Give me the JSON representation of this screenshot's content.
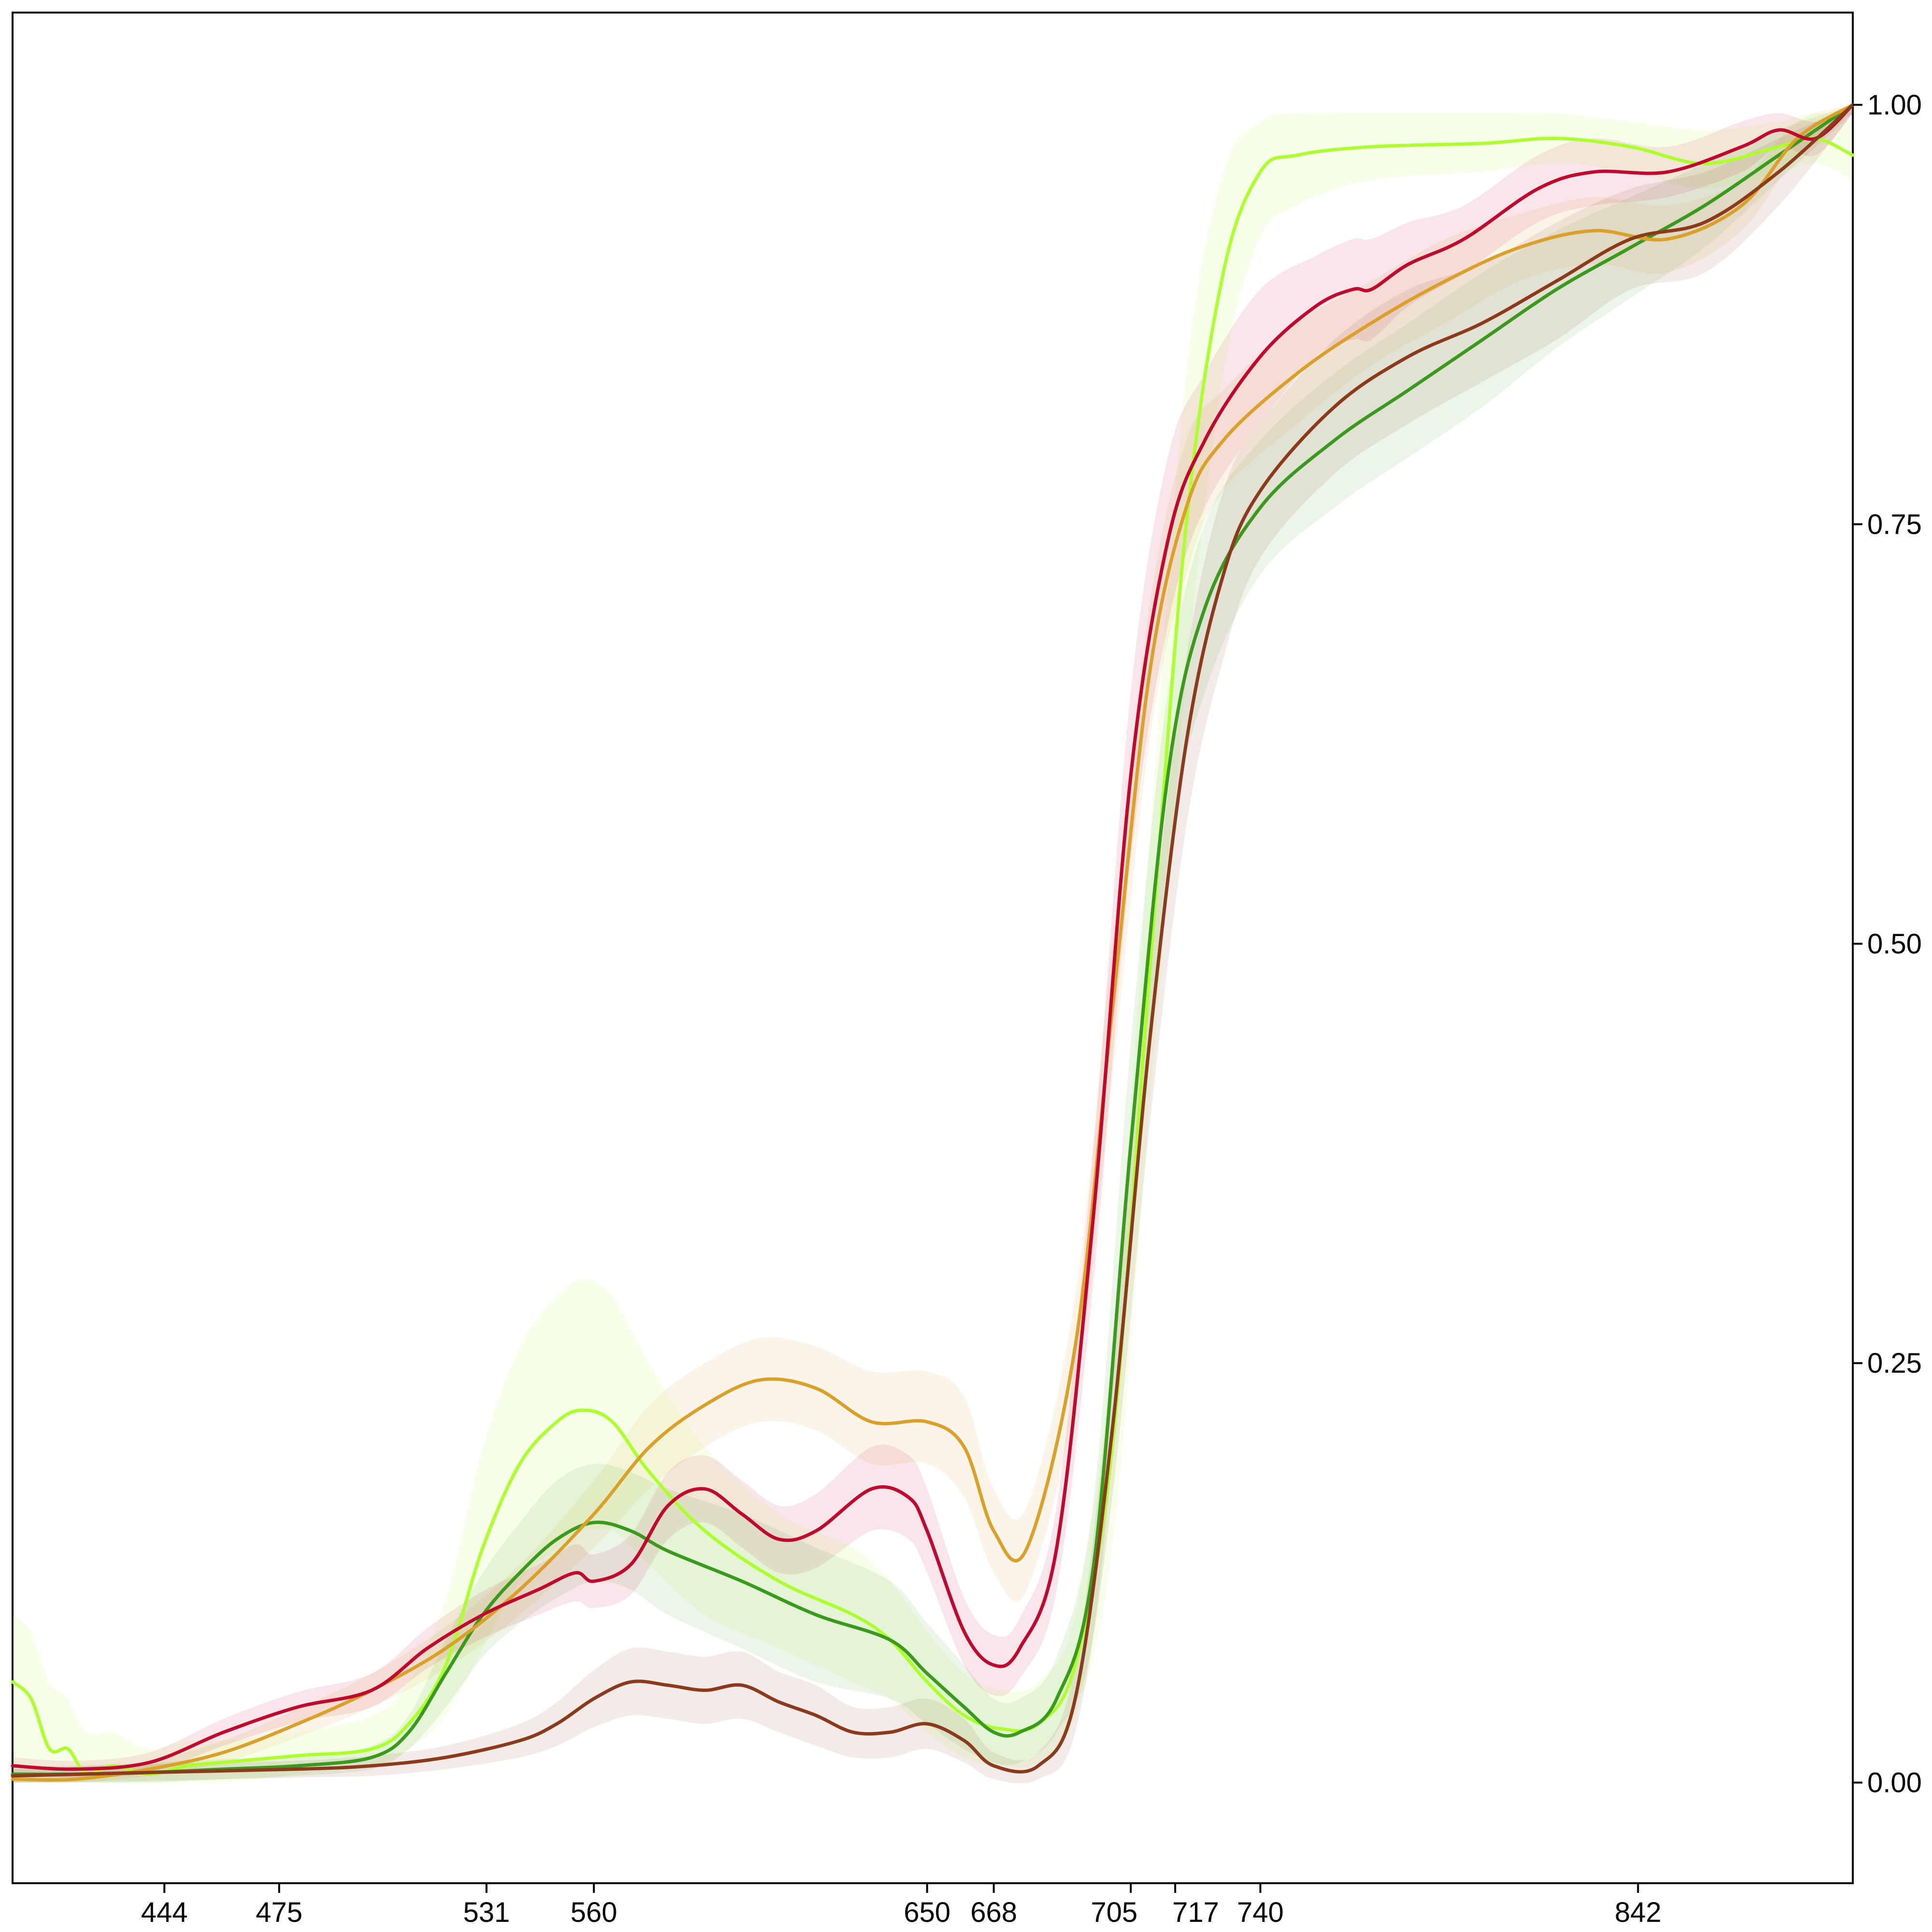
{
  "chart_data": {
    "type": "line",
    "title": "",
    "xlabel": "",
    "ylabel": "",
    "xlim": [
      403,
      900
    ],
    "ylim": [
      -0.06,
      1.055
    ],
    "x_ticks": [
      444,
      475,
      531,
      560,
      650,
      668,
      705,
      717,
      740,
      842
    ],
    "x_tick_labels": [
      "444",
      "475",
      "531",
      "560",
      "650",
      "668",
      "705",
      "717",
      "740",
      "842"
    ],
    "y_ticks": [
      0.0,
      0.25,
      0.5,
      0.75,
      1.0
    ],
    "y_tick_labels": [
      "0.00",
      "0.25",
      "0.50",
      "0.75",
      "1.00"
    ],
    "y_axis_side": "right",
    "grid": false,
    "legend": "none",
    "band_opacity": 0.1,
    "series": [
      {
        "color": "#ADFF2F",
        "x": [
          403,
          408,
          413,
          418,
          423,
          430,
          440,
          450,
          460,
          480,
          500,
          510,
          520,
          530,
          540,
          550,
          557,
          565,
          575,
          590,
          610,
          630,
          640,
          650,
          660,
          670,
          680,
          690,
          700,
          710,
          720,
          730,
          740,
          750,
          770,
          800,
          820,
          840,
          860,
          880,
          890,
          900
        ],
        "y": [
          0.06,
          0.05,
          0.02,
          0.02,
          0.005,
          0.01,
          0.005,
          0.01,
          0.012,
          0.016,
          0.02,
          0.035,
          0.07,
          0.14,
          0.19,
          0.215,
          0.222,
          0.215,
          0.185,
          0.15,
          0.12,
          0.1,
          0.085,
          0.06,
          0.04,
          0.032,
          0.035,
          0.07,
          0.2,
          0.48,
          0.75,
          0.9,
          0.96,
          0.97,
          0.975,
          0.977,
          0.98,
          0.975,
          0.965,
          0.975,
          0.98,
          0.97
        ],
        "lower": [
          0.0,
          0.0,
          0.0,
          0.0,
          0.0,
          0.0,
          0.0,
          0.0,
          0.0,
          0.005,
          0.01,
          0.02,
          0.04,
          0.08,
          0.12,
          0.14,
          0.15,
          0.15,
          0.13,
          0.1,
          0.08,
          0.06,
          0.05,
          0.03,
          0.015,
          0.01,
          0.012,
          0.04,
          0.14,
          0.4,
          0.66,
          0.84,
          0.92,
          0.94,
          0.955,
          0.96,
          0.965,
          0.96,
          0.95,
          0.96,
          0.965,
          0.955
        ],
        "upper": [
          0.1,
          0.09,
          0.06,
          0.05,
          0.03,
          0.03,
          0.02,
          0.025,
          0.025,
          0.03,
          0.04,
          0.06,
          0.11,
          0.2,
          0.26,
          0.29,
          0.3,
          0.29,
          0.25,
          0.2,
          0.16,
          0.14,
          0.12,
          0.09,
          0.065,
          0.055,
          0.06,
          0.1,
          0.26,
          0.56,
          0.84,
          0.96,
          0.99,
          0.995,
          0.995,
          0.995,
          0.995,
          0.99,
          0.985,
          0.99,
          0.995,
          0.99
        ]
      },
      {
        "color": "#3A9A1E",
        "x": [
          403,
          420,
          440,
          460,
          480,
          500,
          510,
          520,
          530,
          540,
          550,
          560,
          570,
          580,
          600,
          620,
          640,
          650,
          660,
          668,
          675,
          685,
          695,
          705,
          715,
          725,
          740,
          760,
          780,
          800,
          820,
          840,
          860,
          880,
          900
        ],
        "y": [
          0.005,
          0.005,
          0.006,
          0.008,
          0.01,
          0.015,
          0.03,
          0.065,
          0.1,
          0.125,
          0.145,
          0.155,
          0.15,
          0.138,
          0.12,
          0.1,
          0.085,
          0.065,
          0.045,
          0.03,
          0.03,
          0.05,
          0.13,
          0.38,
          0.6,
          0.7,
          0.76,
          0.8,
          0.83,
          0.86,
          0.89,
          0.915,
          0.94,
          0.97,
          1.0
        ],
        "lower": [
          0.0,
          0.0,
          0.0,
          0.002,
          0.004,
          0.008,
          0.02,
          0.045,
          0.075,
          0.095,
          0.11,
          0.12,
          0.115,
          0.1,
          0.08,
          0.06,
          0.05,
          0.035,
          0.02,
          0.012,
          0.012,
          0.03,
          0.09,
          0.32,
          0.55,
          0.65,
          0.72,
          0.76,
          0.79,
          0.82,
          0.855,
          0.885,
          0.915,
          0.955,
          0.995
        ],
        "upper": [
          0.01,
          0.01,
          0.012,
          0.014,
          0.016,
          0.022,
          0.04,
          0.085,
          0.125,
          0.155,
          0.18,
          0.19,
          0.185,
          0.175,
          0.16,
          0.14,
          0.12,
          0.095,
          0.07,
          0.05,
          0.05,
          0.075,
          0.17,
          0.44,
          0.65,
          0.75,
          0.8,
          0.84,
          0.87,
          0.9,
          0.925,
          0.945,
          0.965,
          0.985,
          1.0
        ]
      },
      {
        "color": "#DAA02A",
        "x": [
          403,
          420,
          440,
          460,
          480,
          500,
          520,
          540,
          560,
          575,
          590,
          605,
          620,
          635,
          650,
          660,
          668,
          677,
          690,
          700,
          710,
          720,
          730,
          750,
          770,
          790,
          810,
          830,
          850,
          870,
          885,
          900
        ],
        "y": [
          0.002,
          0.002,
          0.008,
          0.018,
          0.035,
          0.055,
          0.08,
          0.115,
          0.16,
          0.2,
          0.225,
          0.24,
          0.235,
          0.215,
          0.215,
          0.2,
          0.15,
          0.14,
          0.26,
          0.46,
          0.66,
          0.76,
          0.8,
          0.84,
          0.87,
          0.895,
          0.915,
          0.925,
          0.92,
          0.94,
          0.98,
          1.0
        ],
        "lower": [
          0.0,
          0.0,
          0.004,
          0.012,
          0.027,
          0.045,
          0.068,
          0.1,
          0.14,
          0.175,
          0.2,
          0.215,
          0.21,
          0.19,
          0.19,
          0.17,
          0.125,
          0.115,
          0.23,
          0.42,
          0.62,
          0.72,
          0.77,
          0.81,
          0.845,
          0.87,
          0.895,
          0.905,
          0.9,
          0.925,
          0.97,
          0.995
        ],
        "upper": [
          0.006,
          0.006,
          0.013,
          0.025,
          0.044,
          0.065,
          0.093,
          0.13,
          0.18,
          0.225,
          0.25,
          0.265,
          0.26,
          0.245,
          0.245,
          0.23,
          0.175,
          0.165,
          0.29,
          0.5,
          0.7,
          0.8,
          0.83,
          0.87,
          0.895,
          0.92,
          0.935,
          0.945,
          0.94,
          0.955,
          0.99,
          1.0
        ]
      },
      {
        "color": "#C0082E",
        "x": [
          403,
          420,
          440,
          460,
          480,
          500,
          515,
          530,
          545,
          555,
          560,
          570,
          580,
          590,
          600,
          610,
          620,
          635,
          645,
          650,
          660,
          668,
          675,
          685,
          695,
          705,
          715,
          725,
          740,
          755,
          765,
          770,
          780,
          795,
          815,
          830,
          850,
          870,
          880,
          890,
          900
        ],
        "y": [
          0.01,
          0.008,
          0.012,
          0.03,
          0.045,
          0.055,
          0.08,
          0.1,
          0.115,
          0.125,
          0.12,
          0.13,
          0.165,
          0.175,
          0.16,
          0.145,
          0.15,
          0.175,
          0.17,
          0.15,
          0.09,
          0.07,
          0.08,
          0.14,
          0.34,
          0.6,
          0.74,
          0.8,
          0.85,
          0.88,
          0.89,
          0.89,
          0.905,
          0.92,
          0.95,
          0.96,
          0.96,
          0.975,
          0.985,
          0.98,
          1.0
        ],
        "lower": [
          0.005,
          0.003,
          0.006,
          0.022,
          0.036,
          0.045,
          0.068,
          0.086,
          0.1,
          0.108,
          0.104,
          0.112,
          0.145,
          0.155,
          0.14,
          0.125,
          0.128,
          0.15,
          0.145,
          0.125,
          0.07,
          0.052,
          0.062,
          0.115,
          0.3,
          0.55,
          0.69,
          0.76,
          0.81,
          0.85,
          0.86,
          0.86,
          0.88,
          0.9,
          0.93,
          0.94,
          0.945,
          0.96,
          0.975,
          0.97,
          0.995
        ],
        "upper": [
          0.015,
          0.013,
          0.018,
          0.038,
          0.054,
          0.065,
          0.092,
          0.114,
          0.13,
          0.142,
          0.136,
          0.148,
          0.185,
          0.195,
          0.18,
          0.165,
          0.172,
          0.2,
          0.195,
          0.175,
          0.11,
          0.088,
          0.098,
          0.165,
          0.38,
          0.65,
          0.79,
          0.84,
          0.89,
          0.91,
          0.92,
          0.92,
          0.93,
          0.94,
          0.97,
          0.98,
          0.975,
          0.99,
          0.995,
          0.99,
          1.0
        ]
      },
      {
        "color": "#8B3A1C",
        "x": [
          403,
          440,
          480,
          500,
          520,
          540,
          550,
          560,
          570,
          580,
          590,
          600,
          610,
          620,
          630,
          640,
          650,
          660,
          668,
          680,
          690,
          700,
          710,
          720,
          730,
          740,
          760,
          780,
          800,
          820,
          840,
          860,
          880,
          900
        ],
        "y": [
          0.004,
          0.006,
          0.008,
          0.01,
          0.015,
          0.025,
          0.035,
          0.05,
          0.06,
          0.058,
          0.055,
          0.058,
          0.048,
          0.04,
          0.03,
          0.03,
          0.035,
          0.025,
          0.01,
          0.01,
          0.05,
          0.21,
          0.44,
          0.62,
          0.72,
          0.77,
          0.82,
          0.85,
          0.87,
          0.895,
          0.92,
          0.93,
          0.96,
          1.0
        ],
        "lower": [
          0.0,
          0.001,
          0.003,
          0.004,
          0.008,
          0.015,
          0.022,
          0.033,
          0.04,
          0.038,
          0.035,
          0.038,
          0.03,
          0.022,
          0.015,
          0.015,
          0.02,
          0.012,
          0.002,
          0.002,
          0.03,
          0.17,
          0.39,
          0.57,
          0.67,
          0.73,
          0.78,
          0.81,
          0.835,
          0.86,
          0.89,
          0.9,
          0.94,
          0.995
        ],
        "upper": [
          0.008,
          0.011,
          0.013,
          0.016,
          0.022,
          0.035,
          0.048,
          0.067,
          0.08,
          0.078,
          0.075,
          0.078,
          0.066,
          0.058,
          0.045,
          0.045,
          0.05,
          0.038,
          0.018,
          0.018,
          0.07,
          0.25,
          0.49,
          0.67,
          0.77,
          0.81,
          0.86,
          0.89,
          0.905,
          0.93,
          0.95,
          0.96,
          0.98,
          1.0
        ]
      }
    ]
  }
}
